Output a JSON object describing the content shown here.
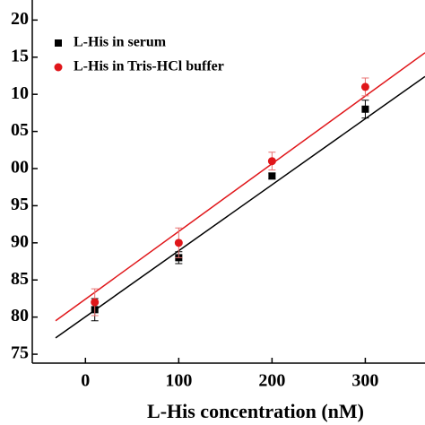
{
  "chart_data": {
    "type": "scatter",
    "xlabel": "L-His concentration (nM)",
    "xlim": [
      -57,
      364
    ],
    "ylim": [
      73.8,
      122.7
    ],
    "xticks": [
      0,
      100,
      200,
      300
    ],
    "yticks": [
      75,
      80,
      85,
      90,
      95,
      {
        "value": 100,
        "label": "00"
      },
      {
        "value": 105,
        "label": "05"
      },
      {
        "value": 110,
        "label": "10"
      },
      {
        "value": 115,
        "label": "15"
      },
      {
        "value": 120,
        "label": "20"
      }
    ],
    "legend": "upper left",
    "series": [
      {
        "name": "L-His in serum",
        "color": "#000000",
        "marker": "square",
        "x": [
          10,
          100,
          200,
          300
        ],
        "values": [
          81,
          88,
          99,
          108
        ],
        "errors": [
          1.5,
          0.8,
          0.4,
          1.2
        ],
        "fit": {
          "x": [
            -32,
            364
          ],
          "values": [
            77.2,
            112.4
          ]
        }
      },
      {
        "name": "L-His in Tris-HCl buffer",
        "color": "#e0161a",
        "marker": "circle",
        "x": [
          10,
          100,
          200,
          300
        ],
        "values": [
          82,
          90,
          101,
          111
        ],
        "errors": [
          1.8,
          2,
          1.2,
          1.2
        ],
        "fit": {
          "x": [
            -32,
            364
          ],
          "values": [
            79.5,
            115.6
          ]
        }
      }
    ]
  }
}
